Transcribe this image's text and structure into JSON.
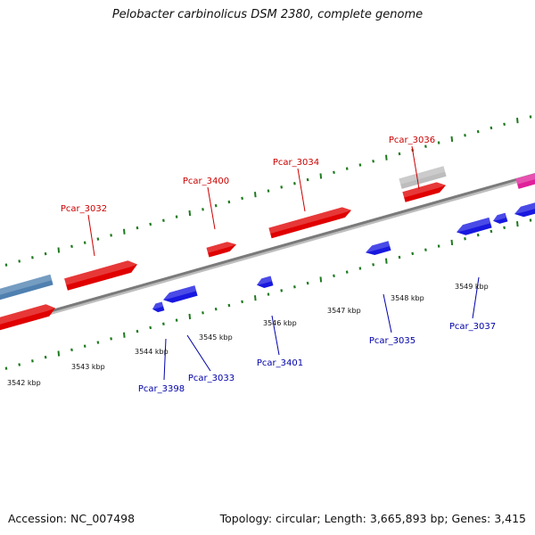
{
  "title": "Pelobacter carbinolicus DSM 2380, complete genome",
  "footer": {
    "accession": "Accession: NC_007498",
    "summary": "Topology: circular; Length: 3,665,893 bp; Genes: 3,415"
  },
  "colors": {
    "forward_gene": "#e00000",
    "reverse_gene": "#1818e0",
    "other_gene": "#bdbdbd",
    "rna_gene": "#e0209a",
    "steel_gene": "#4f80b0",
    "backbone": "#7a7a7a",
    "tick": "#1d7a1d",
    "forward_label": "#cc0000",
    "reverse_label": "#0000aa"
  },
  "kbp_labels": [
    "3542 kbp",
    "3543 kbp",
    "3544 kbp",
    "3545 kbp",
    "3546 kbp",
    "3547 kbp",
    "3548 kbp",
    "3549 kbp"
  ],
  "forward_labels": [
    "Pcar_3032",
    "Pcar_3400",
    "Pcar_3034",
    "Pcar_3036"
  ],
  "reverse_labels": [
    "Pcar_3398",
    "Pcar_3033",
    "Pcar_3401",
    "Pcar_3035",
    "Pcar_3037"
  ]
}
